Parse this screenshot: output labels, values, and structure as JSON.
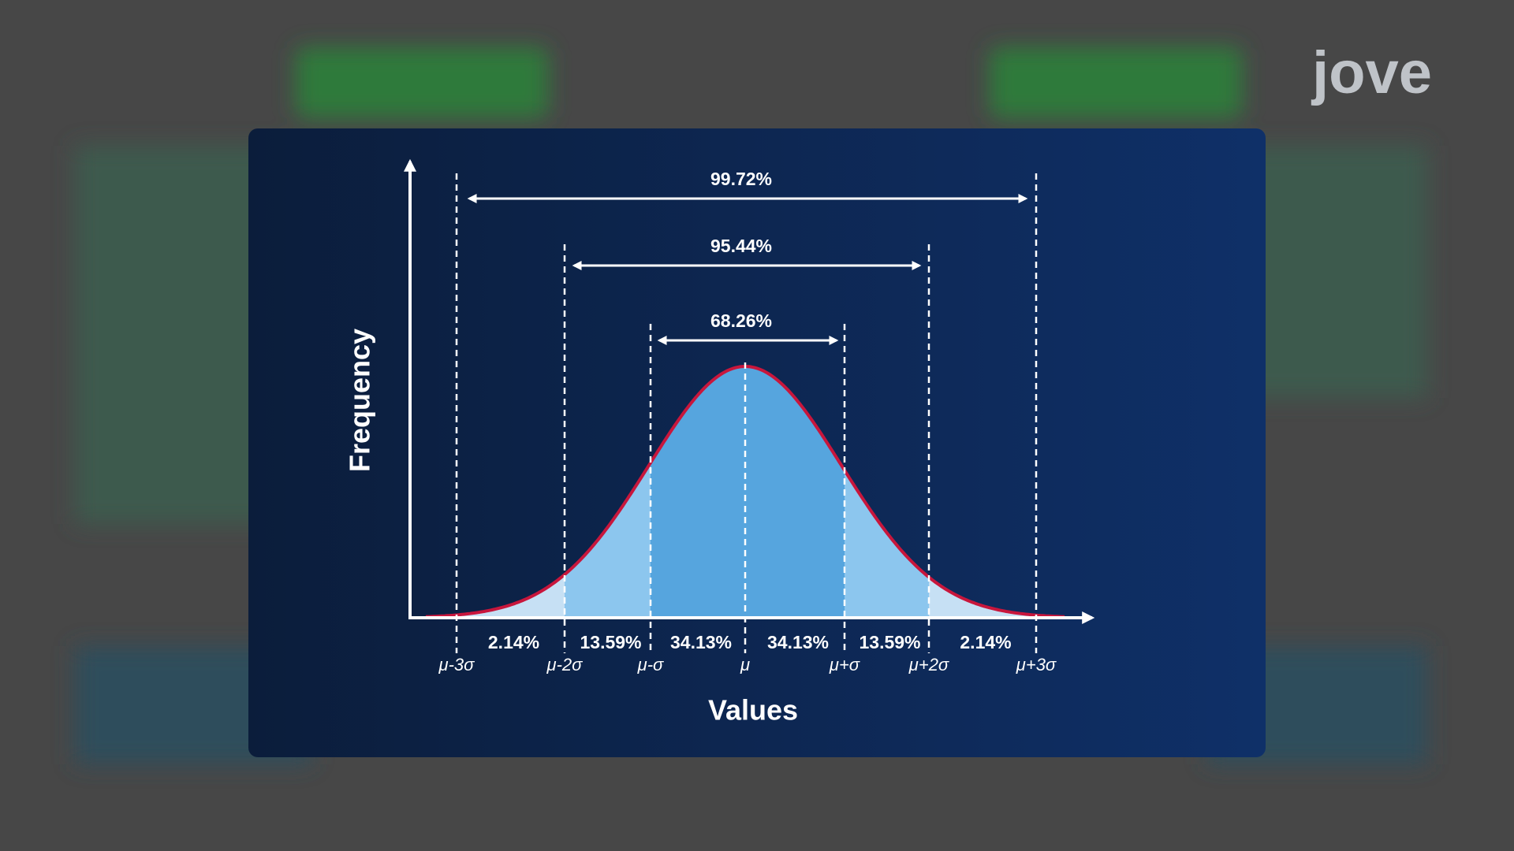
{
  "logo": "jove",
  "axes": {
    "y_label": "Frequency",
    "x_label": "Values"
  },
  "ranges": [
    {
      "label": "99.72%"
    },
    {
      "label": "95.44%"
    },
    {
      "label": "68.26%"
    }
  ],
  "segments": [
    "2.14%",
    "13.59%",
    "34.13%",
    "34.13%",
    "13.59%",
    "2.14%"
  ],
  "markers": [
    "μ-3σ",
    "μ-2σ",
    "μ-σ",
    "μ",
    "μ+σ",
    "μ+2σ",
    "μ+3σ"
  ]
}
